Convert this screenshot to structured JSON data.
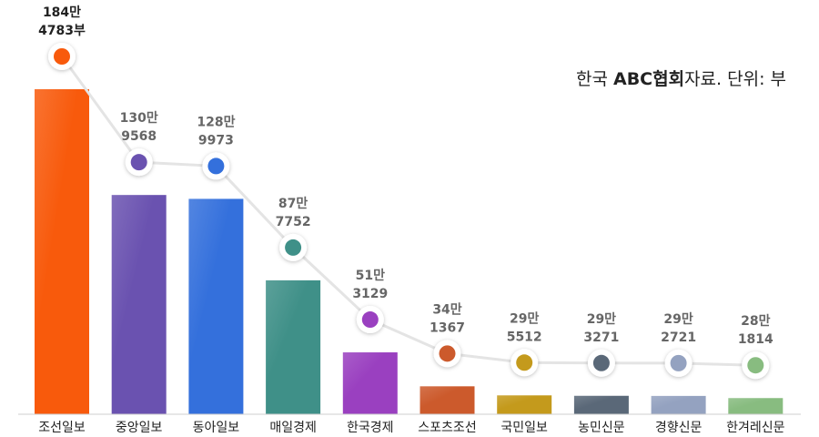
{
  "chart_data": {
    "type": "bar",
    "title": "",
    "annotation": {
      "prefix": "한국 ",
      "bold": "ABC협회",
      "suffix": "자료.  단위: 부"
    },
    "unit": "부",
    "categories": [
      "조선일보",
      "중앙일보",
      "동아일보",
      "매일경제",
      "한국경제",
      "스포츠조선",
      "국민일보",
      "농민신문",
      "경향신문",
      "한겨레신문"
    ],
    "values": [
      1844783,
      1309568,
      1289973,
      877752,
      513129,
      341367,
      295512,
      293271,
      292721,
      281814
    ],
    "labels": [
      [
        "184만",
        "4783부"
      ],
      [
        "130만",
        "9568"
      ],
      [
        "128만",
        "9973"
      ],
      [
        "87만",
        "7752"
      ],
      [
        "51만",
        "3129"
      ],
      [
        "34만",
        "1367"
      ],
      [
        "29만",
        "5512"
      ],
      [
        "29만",
        "3271"
      ],
      [
        "29만",
        "2721"
      ],
      [
        "28만",
        "1814"
      ]
    ],
    "colors": [
      "#f85a0c",
      "#6a52b0",
      "#3470dc",
      "#3f9088",
      "#9a40c0",
      "#cc5a2c",
      "#c49a1c",
      "#5a6878",
      "#94a2c0",
      "#88bc80"
    ],
    "line_color": "#e4e4e4",
    "ylim": [
      200000,
      1900000
    ],
    "grid": false,
    "legend": "none"
  }
}
